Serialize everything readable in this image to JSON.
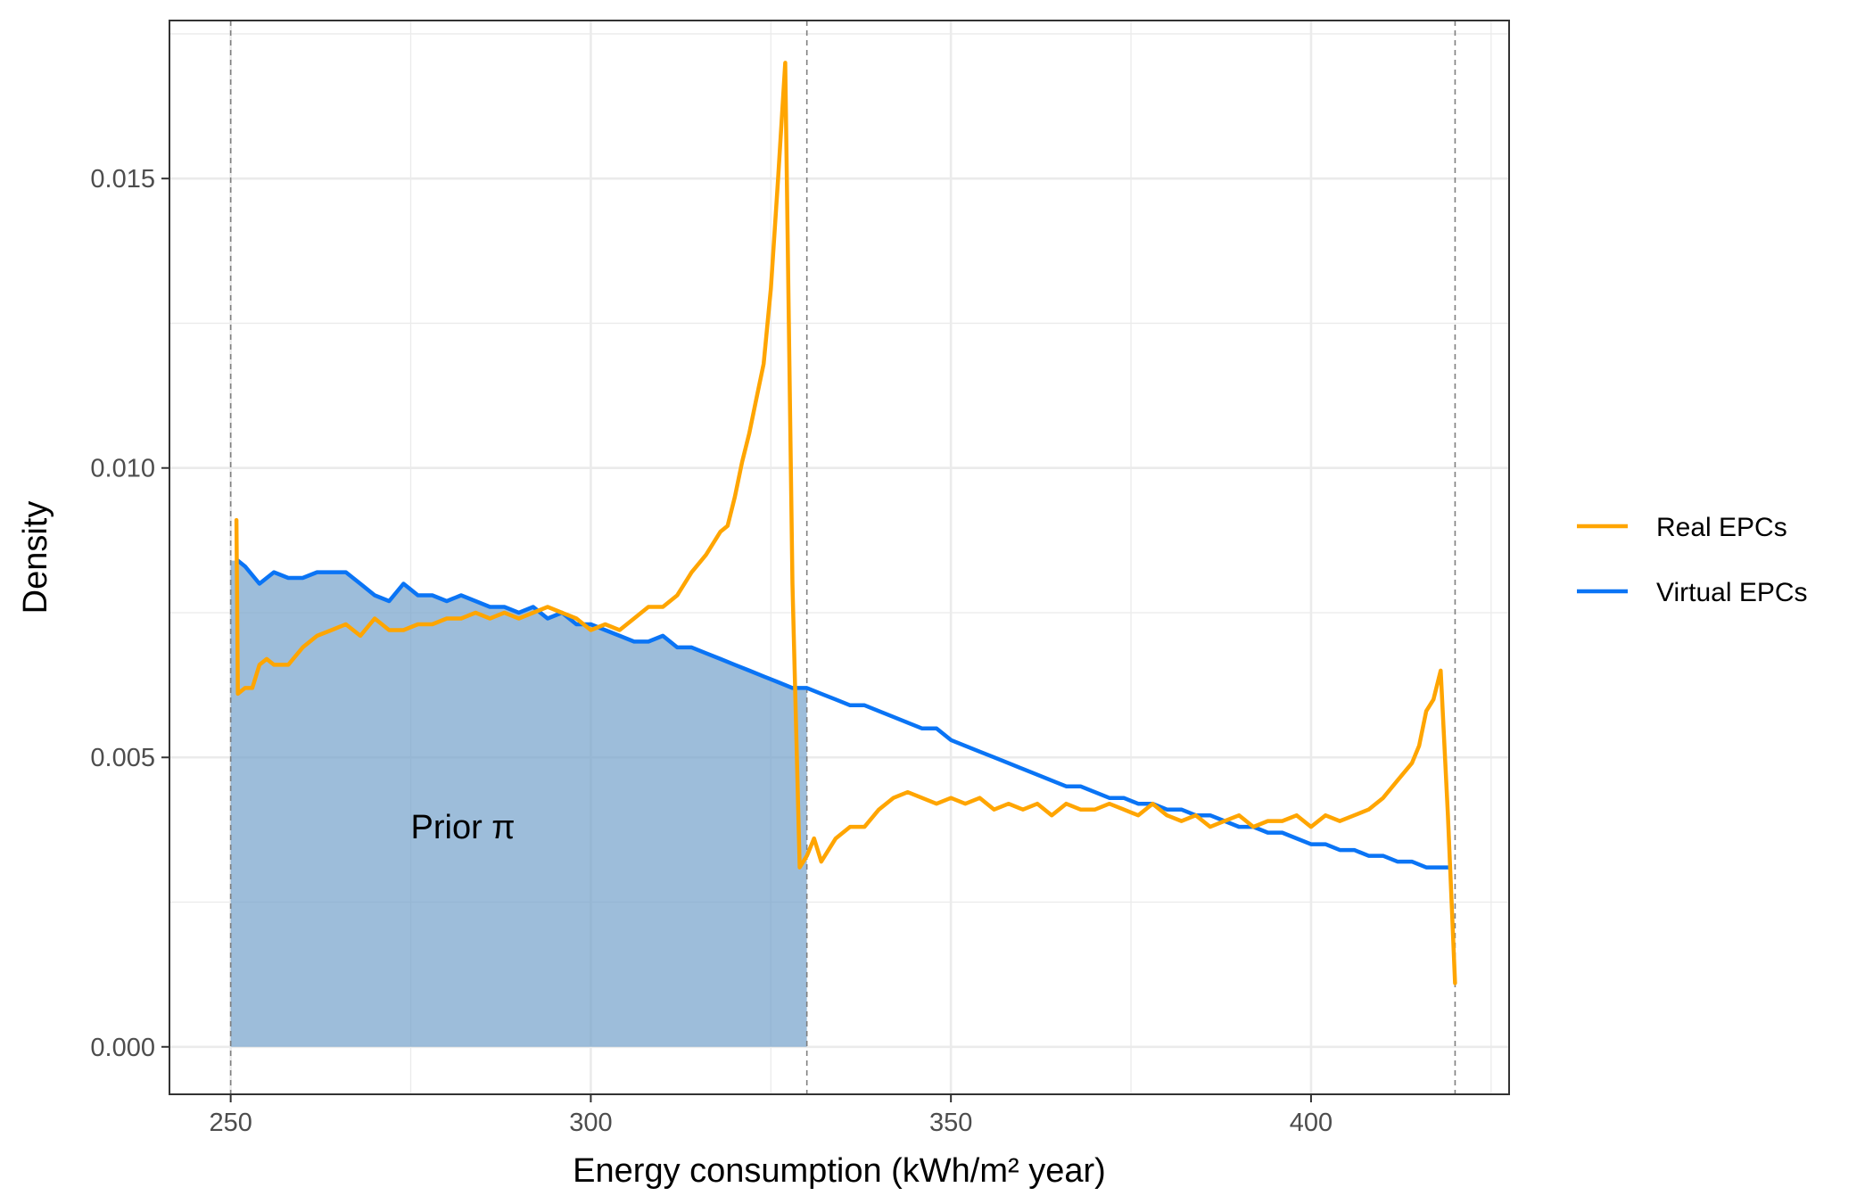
{
  "chart_data": {
    "type": "line",
    "xlabel": "Energy consumption (kWh/m² year)",
    "ylabel": "Density",
    "xlim": [
      241.5,
      427.5
    ],
    "ylim": [
      -0.00082,
      0.01773
    ],
    "x_ticks": [
      250,
      300,
      350,
      400
    ],
    "x_tick_labels": [
      "250",
      "300",
      "350",
      "400"
    ],
    "y_ticks": [
      0,
      0.005,
      0.01,
      0.015
    ],
    "y_tick_labels": [
      "0.000",
      "0.005",
      "0.010",
      "0.015"
    ],
    "grid": true,
    "legend_position": "right",
    "vlines": [
      250,
      330,
      420
    ],
    "shaded_region": {
      "x_from": 250,
      "x_to": 330,
      "follows_series": "Virtual EPCs",
      "color": "#6f9dc8"
    },
    "annotation": "Prior π",
    "annotation_at": [
      275,
      0.0038
    ],
    "series": [
      {
        "name": "Real EPCs",
        "color": "#ffa500",
        "x": [
          250.8,
          251,
          252,
          253,
          254,
          255,
          256,
          258,
          260,
          262,
          264,
          266,
          268,
          270,
          272,
          274,
          276,
          278,
          280,
          282,
          284,
          286,
          288,
          290,
          292,
          294,
          296,
          298,
          300,
          302,
          304,
          306,
          308,
          310,
          312,
          314,
          316,
          318,
          319,
          320,
          321,
          322,
          323,
          324,
          325,
          326,
          327,
          328,
          329,
          330,
          331,
          332,
          334,
          336,
          338,
          340,
          342,
          344,
          346,
          348,
          350,
          352,
          354,
          356,
          358,
          360,
          362,
          364,
          366,
          368,
          370,
          372,
          374,
          376,
          378,
          380,
          382,
          384,
          386,
          388,
          390,
          392,
          394,
          396,
          398,
          400,
          402,
          404,
          406,
          408,
          410,
          412,
          414,
          415,
          416,
          417,
          418,
          419,
          420
        ],
        "y": [
          0.0091,
          0.0061,
          0.0062,
          0.0062,
          0.0066,
          0.0067,
          0.0066,
          0.0066,
          0.0069,
          0.0071,
          0.0072,
          0.0073,
          0.0071,
          0.0074,
          0.0072,
          0.0072,
          0.0073,
          0.0073,
          0.0074,
          0.0074,
          0.0075,
          0.0074,
          0.0075,
          0.0074,
          0.0075,
          0.0076,
          0.0075,
          0.0074,
          0.0072,
          0.0073,
          0.0072,
          0.0074,
          0.0076,
          0.0076,
          0.0078,
          0.0082,
          0.0085,
          0.0089,
          0.009,
          0.0095,
          0.0101,
          0.0106,
          0.0112,
          0.0118,
          0.0131,
          0.015,
          0.017,
          0.008,
          0.0031,
          0.0033,
          0.0036,
          0.0032,
          0.0036,
          0.0038,
          0.0038,
          0.0041,
          0.0043,
          0.0044,
          0.0043,
          0.0042,
          0.0043,
          0.0042,
          0.0043,
          0.0041,
          0.0042,
          0.0041,
          0.0042,
          0.004,
          0.0042,
          0.0041,
          0.0041,
          0.0042,
          0.0041,
          0.004,
          0.0042,
          0.004,
          0.0039,
          0.004,
          0.0038,
          0.0039,
          0.004,
          0.0038,
          0.0039,
          0.0039,
          0.004,
          0.0038,
          0.004,
          0.0039,
          0.004,
          0.0041,
          0.0043,
          0.0046,
          0.0049,
          0.0052,
          0.0058,
          0.006,
          0.0065,
          0.004,
          0.0011
        ]
      },
      {
        "name": "Virtual EPCs",
        "color": "#0a74f5",
        "x": [
          251,
          252,
          254,
          256,
          258,
          260,
          262,
          264,
          266,
          268,
          270,
          272,
          274,
          276,
          278,
          280,
          282,
          284,
          286,
          288,
          290,
          292,
          294,
          296,
          298,
          300,
          302,
          304,
          306,
          308,
          310,
          312,
          314,
          316,
          318,
          320,
          322,
          324,
          326,
          328,
          330,
          332,
          334,
          336,
          338,
          340,
          342,
          344,
          346,
          348,
          350,
          352,
          354,
          356,
          358,
          360,
          362,
          364,
          366,
          368,
          370,
          372,
          374,
          376,
          378,
          380,
          382,
          384,
          386,
          388,
          390,
          392,
          394,
          396,
          398,
          400,
          402,
          404,
          406,
          408,
          410,
          412,
          414,
          416,
          418,
          419
        ],
        "y": [
          0.0084,
          0.0083,
          0.008,
          0.0082,
          0.0081,
          0.0081,
          0.0082,
          0.0082,
          0.0082,
          0.008,
          0.0078,
          0.0077,
          0.008,
          0.0078,
          0.0078,
          0.0077,
          0.0078,
          0.0077,
          0.0076,
          0.0076,
          0.0075,
          0.0076,
          0.0074,
          0.0075,
          0.0073,
          0.0073,
          0.0072,
          0.0071,
          0.007,
          0.007,
          0.0071,
          0.0069,
          0.0069,
          0.0068,
          0.0067,
          0.0066,
          0.0065,
          0.0064,
          0.0063,
          0.0062,
          0.0062,
          0.0061,
          0.006,
          0.0059,
          0.0059,
          0.0058,
          0.0057,
          0.0056,
          0.0055,
          0.0055,
          0.0053,
          0.0052,
          0.0051,
          0.005,
          0.0049,
          0.0048,
          0.0047,
          0.0046,
          0.0045,
          0.0045,
          0.0044,
          0.0043,
          0.0043,
          0.0042,
          0.0042,
          0.0041,
          0.0041,
          0.004,
          0.004,
          0.0039,
          0.0038,
          0.0038,
          0.0037,
          0.0037,
          0.0036,
          0.0035,
          0.0035,
          0.0034,
          0.0034,
          0.0033,
          0.0033,
          0.0032,
          0.0032,
          0.0031,
          0.0031,
          0.0031
        ]
      }
    ]
  }
}
